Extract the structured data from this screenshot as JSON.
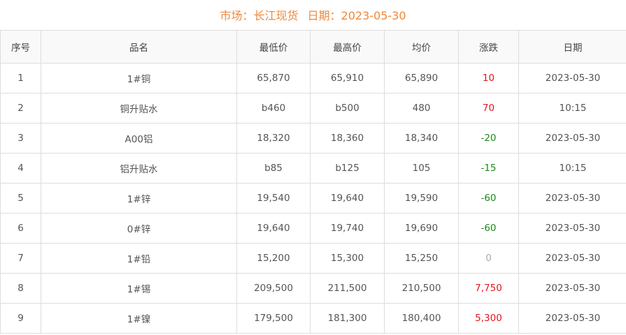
{
  "header": {
    "market_label": "市场：长江现货",
    "date_label": "日期：2023-05-30"
  },
  "colors": {
    "title": "#f0883a",
    "up": "#e4141e",
    "down": "#1a8a1a",
    "flat": "#aaaaaa"
  },
  "table": {
    "columns": [
      "序号",
      "品名",
      "最低价",
      "最高价",
      "均价",
      "涨跌",
      "日期"
    ],
    "rows": [
      {
        "no": "1",
        "name": "1#铜",
        "low": "65,870",
        "high": "65,910",
        "avg": "65,890",
        "change": "10",
        "dir": "up",
        "date": "2023-05-30"
      },
      {
        "no": "2",
        "name": "铜升贴水",
        "low": "b460",
        "high": "b500",
        "avg": "480",
        "change": "70",
        "dir": "up",
        "date": "10:15"
      },
      {
        "no": "3",
        "name": "A00铝",
        "low": "18,320",
        "high": "18,360",
        "avg": "18,340",
        "change": "-20",
        "dir": "down",
        "date": "2023-05-30"
      },
      {
        "no": "4",
        "name": "铝升贴水",
        "low": "b85",
        "high": "b125",
        "avg": "105",
        "change": "-15",
        "dir": "down",
        "date": "10:15"
      },
      {
        "no": "5",
        "name": "1#锌",
        "low": "19,540",
        "high": "19,640",
        "avg": "19,590",
        "change": "-60",
        "dir": "down",
        "date": "2023-05-30"
      },
      {
        "no": "6",
        "name": "0#锌",
        "low": "19,640",
        "high": "19,740",
        "avg": "19,690",
        "change": "-60",
        "dir": "down",
        "date": "2023-05-30"
      },
      {
        "no": "7",
        "name": "1#铅",
        "low": "15,200",
        "high": "15,300",
        "avg": "15,250",
        "change": "0",
        "dir": "flat",
        "date": "2023-05-30"
      },
      {
        "no": "8",
        "name": "1#锡",
        "low": "209,500",
        "high": "211,500",
        "avg": "210,500",
        "change": "7,750",
        "dir": "up",
        "date": "2023-05-30"
      },
      {
        "no": "9",
        "name": "1#镍",
        "low": "179,500",
        "high": "181,300",
        "avg": "180,400",
        "change": "5,300",
        "dir": "up",
        "date": "2023-05-30"
      }
    ]
  }
}
